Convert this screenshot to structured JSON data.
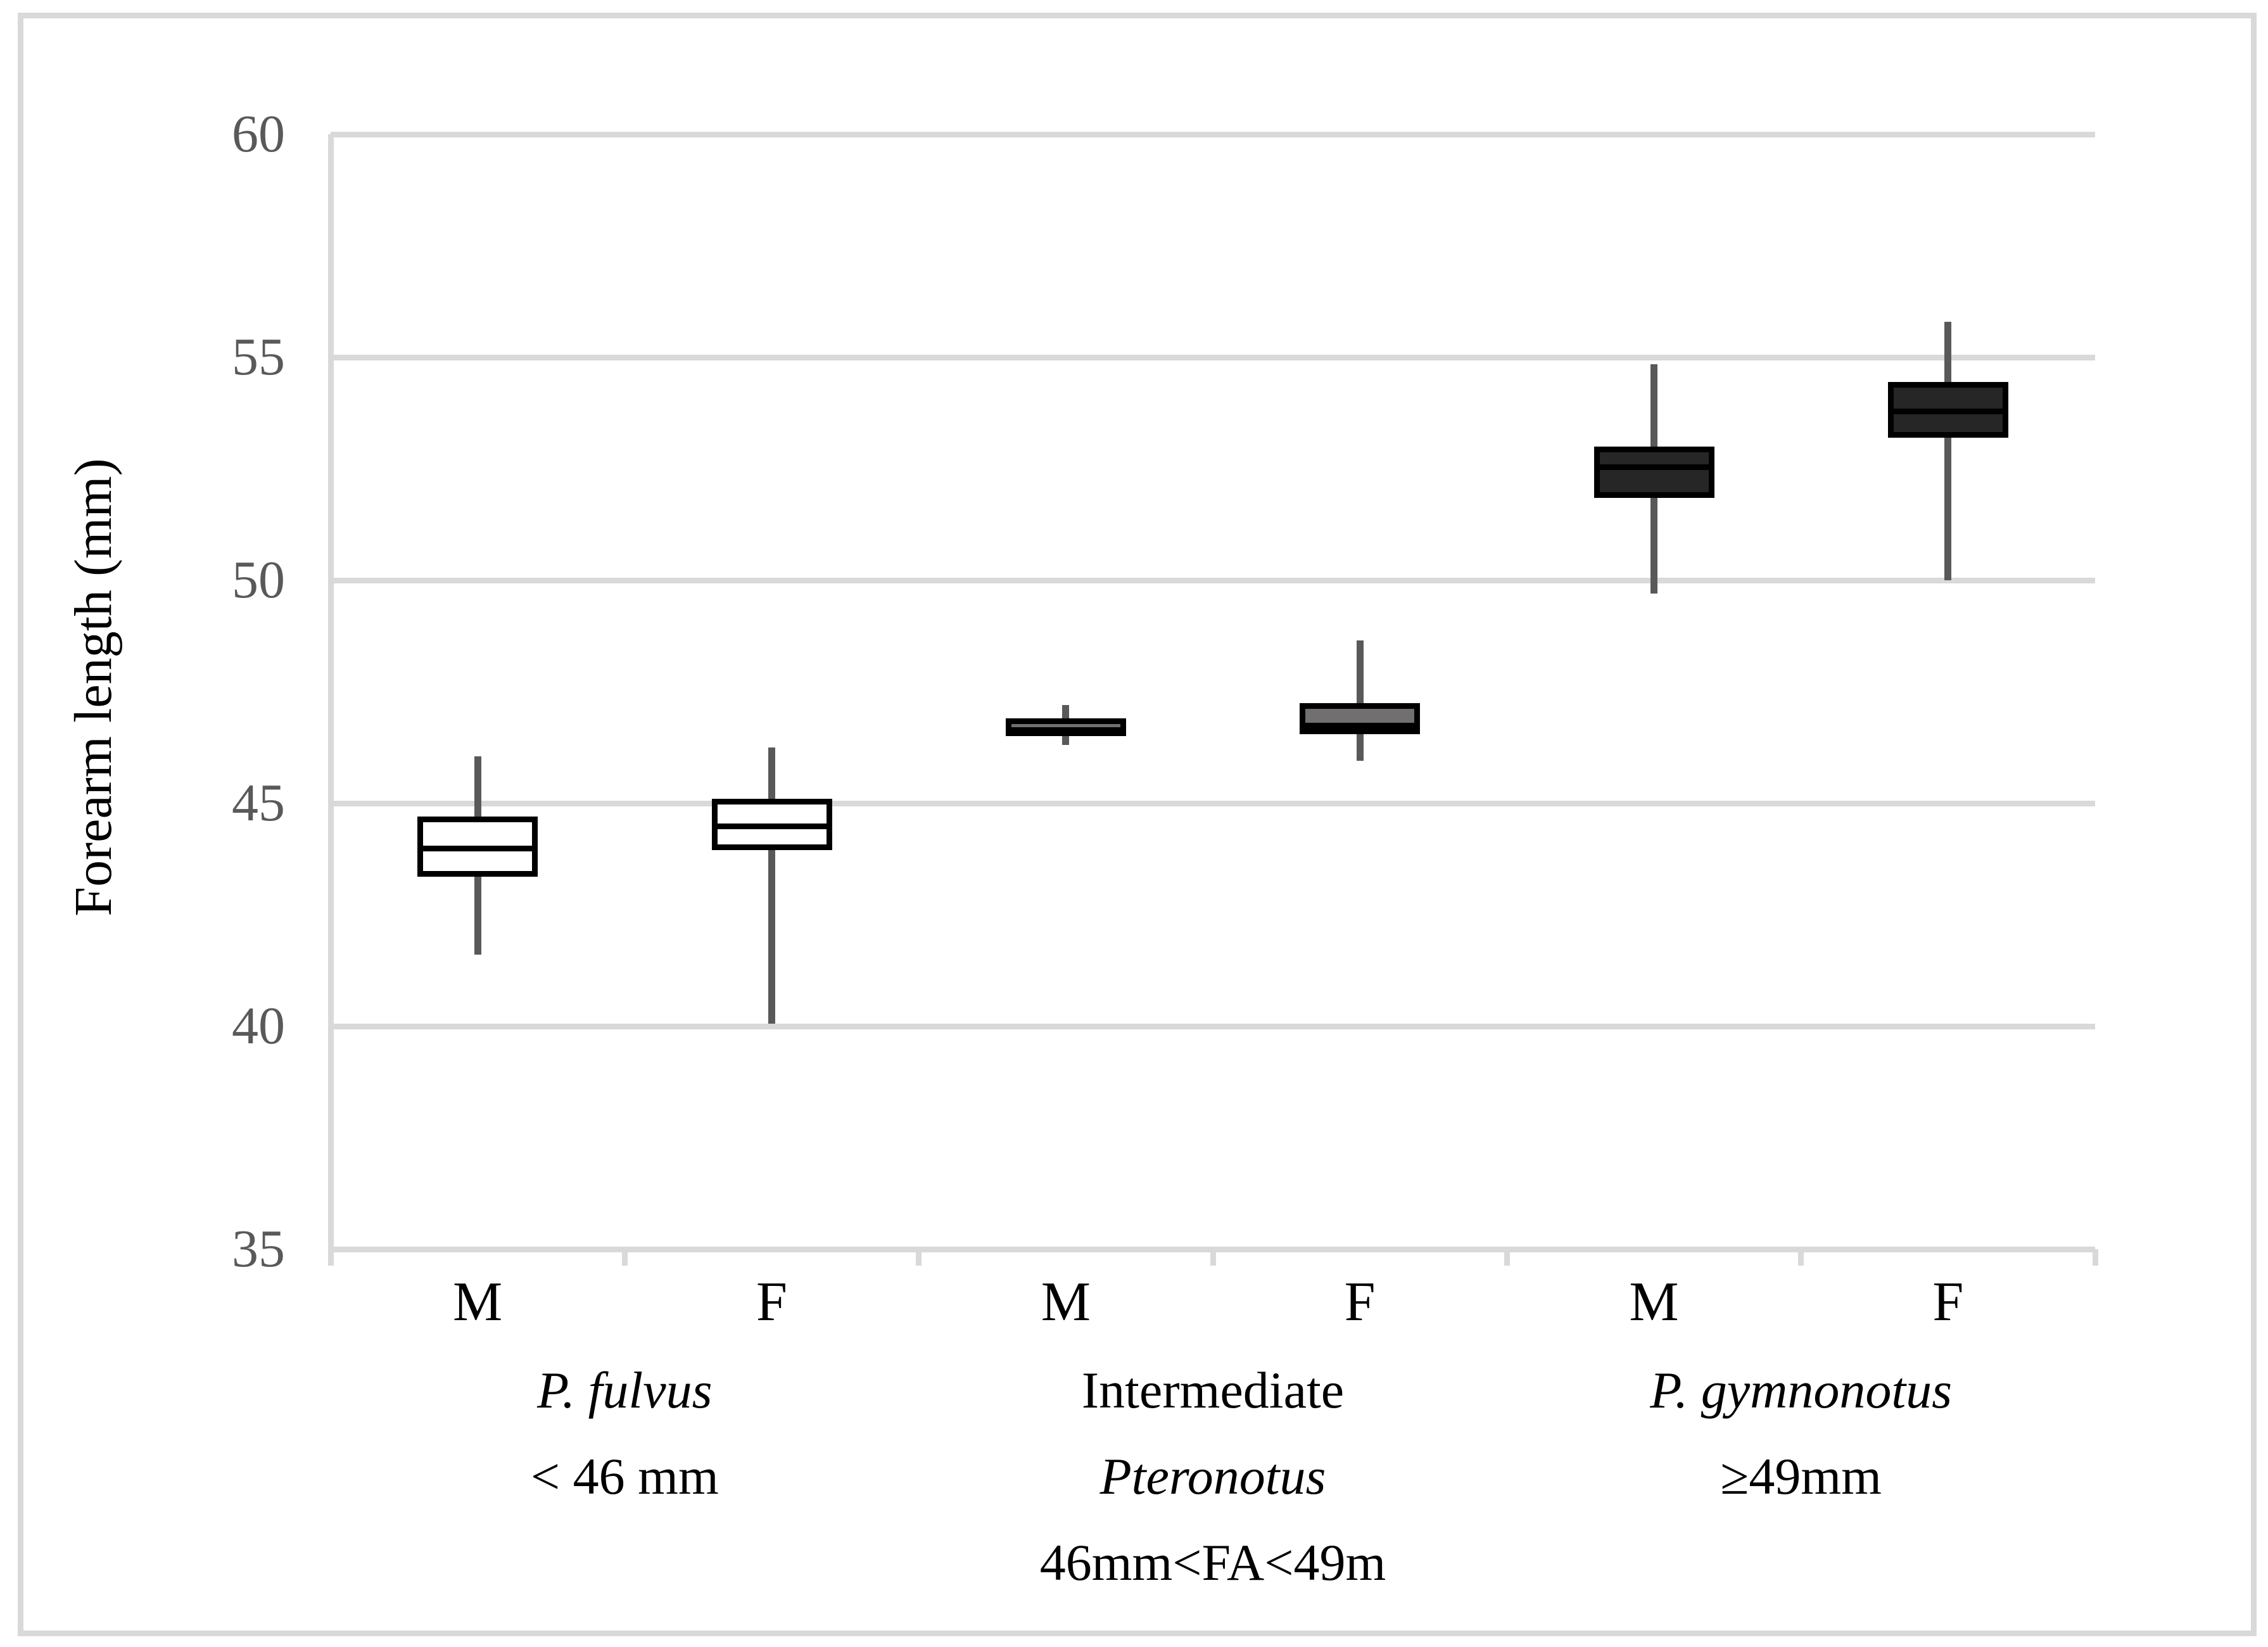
{
  "colors": {
    "gridline": "#d9d9d9",
    "axis": "#d9d9d9",
    "frame_border": "#d9d9d9",
    "whisker": "#595959",
    "tick_label": "#595959",
    "text": "#000000",
    "box_border": "#000000",
    "fill_pfulvus": "#ffffff",
    "fill_intermediate": "#716f6f",
    "fill_pgymnonotus": "#262626"
  },
  "chart_data": {
    "type": "boxplot",
    "title": "",
    "xlabel": "",
    "ylabel": "Forearm length (mm)",
    "ylim": [
      35,
      60
    ],
    "yticks": [
      60,
      55,
      50,
      45,
      40,
      35
    ],
    "grid": "horizontal",
    "legend": "none",
    "x_tick_labels": [
      "M",
      "F",
      "M",
      "F",
      "M",
      "F"
    ],
    "series": [
      {
        "sex": "M",
        "group": "P. fulvus",
        "min": 41.6,
        "q1": 43.35,
        "median": 44.05,
        "q3": 44.7,
        "max": 46.05,
        "fill": "#ffffff"
      },
      {
        "sex": "F",
        "group": "P. fulvus",
        "min": 40.05,
        "q1": 43.95,
        "median": 44.55,
        "q3": 45.1,
        "max": 46.25,
        "fill": "#ffffff"
      },
      {
        "sex": "M",
        "group": "Intermediate Pteronotus",
        "min": 46.3,
        "q1": 46.5,
        "median": 46.7,
        "q3": 46.9,
        "max": 47.2,
        "fill": "#716f6f"
      },
      {
        "sex": "F",
        "group": "Intermediate Pteronotus",
        "min": 45.95,
        "q1": 46.55,
        "median": 46.8,
        "q3": 47.25,
        "max": 48.65,
        "fill": "#716f6f"
      },
      {
        "sex": "M",
        "group": "P. gymnonotus",
        "min": 49.7,
        "q1": 51.85,
        "median": 52.6,
        "q3": 53.0,
        "max": 54.85,
        "fill": "#262626"
      },
      {
        "sex": "F",
        "group": "P. gymnonotus",
        "min": 50.0,
        "q1": 53.2,
        "median": 53.85,
        "q3": 54.45,
        "max": 55.8,
        "fill": "#262626"
      }
    ],
    "group_labels": [
      {
        "lines": [
          {
            "text": "P. fulvus",
            "italic": true
          },
          {
            "text": "< 46 mm",
            "italic": false
          }
        ]
      },
      {
        "lines": [
          {
            "text": "Intermediate",
            "italic": false
          },
          {
            "text": "Pteronotus",
            "italic": true
          },
          {
            "text": "46mm<FA<49m",
            "italic": false
          }
        ]
      },
      {
        "lines": [
          {
            "text": "P. gymnonotus",
            "italic": true
          },
          {
            "text": "≥49mm",
            "italic": false
          }
        ]
      }
    ]
  }
}
